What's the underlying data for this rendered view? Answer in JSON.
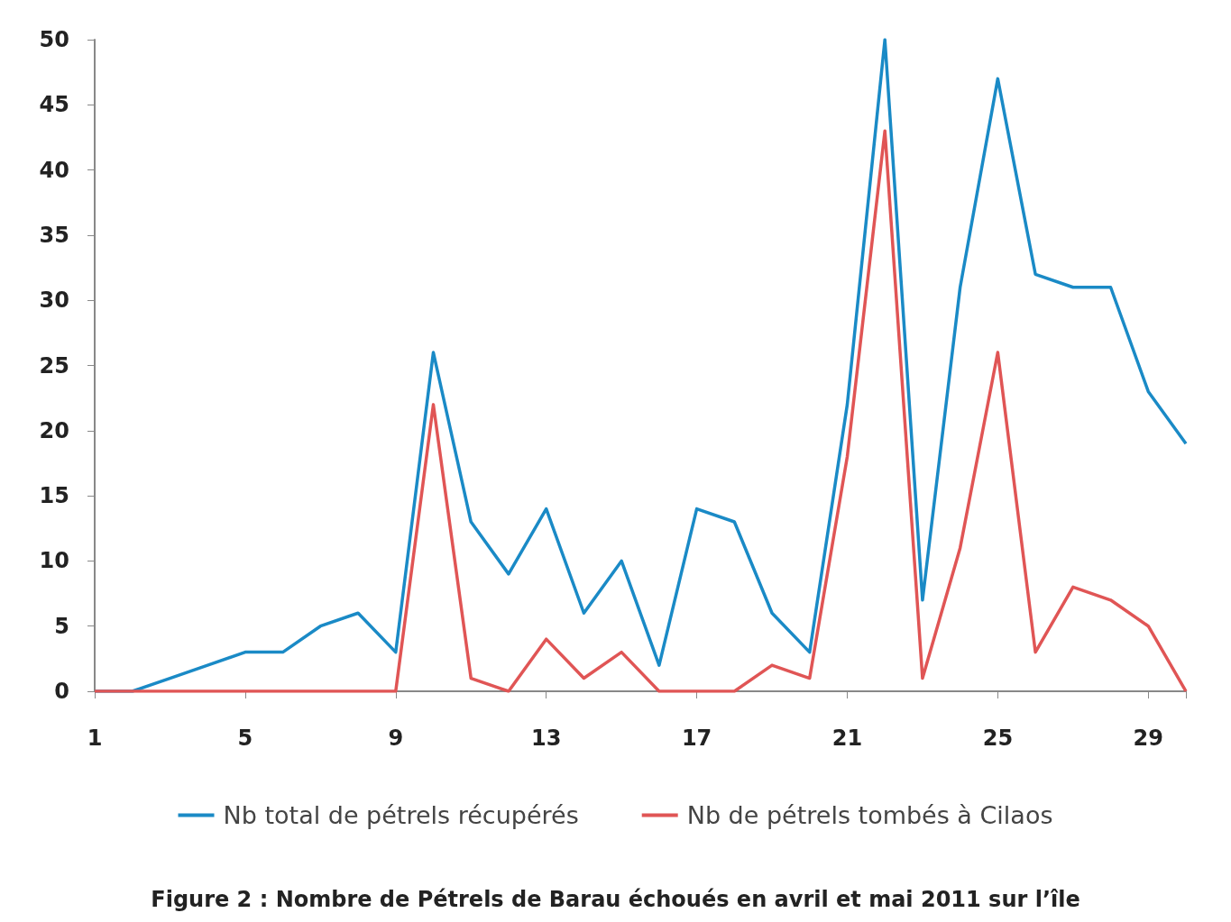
{
  "chart_data": {
    "type": "line",
    "title": "Figure 2 : Nombre de Pétrels de Barau échoués en avril et mai 2011 sur l’île",
    "categories": [
      "1",
      null,
      null,
      null,
      "5",
      null,
      null,
      null,
      "9",
      null,
      null,
      null,
      "13",
      null,
      null,
      null,
      "17",
      null,
      null,
      null,
      "21",
      null,
      null,
      null,
      "25",
      null,
      null,
      null,
      "29",
      null
    ],
    "series": [
      {
        "name": "Nb total de pétrels récupérés",
        "color": "#1a8ac6",
        "values": [
          0,
          0,
          1,
          2,
          3,
          3,
          5,
          6,
          3,
          26,
          13,
          9,
          14,
          6,
          10,
          2,
          14,
          13,
          6,
          3,
          22,
          50,
          7,
          31,
          47,
          32,
          31,
          31,
          23,
          19
        ]
      },
      {
        "name": "Nb de pétrels tombés à Cilaos",
        "color": "#e05555",
        "values": [
          0,
          0,
          0,
          0,
          0,
          0,
          0,
          0,
          0,
          22,
          1,
          0,
          4,
          1,
          3,
          0,
          0,
          0,
          2,
          1,
          18,
          43,
          1,
          11,
          26,
          3,
          8,
          7,
          5,
          0
        ]
      }
    ],
    "ylim": [
      0,
      50
    ],
    "yticks": [
      0,
      5,
      10,
      15,
      20,
      25,
      30,
      35,
      40,
      45,
      50
    ],
    "grid": false,
    "legend": "bottom",
    "marker": "none",
    "line_style": "solid"
  }
}
